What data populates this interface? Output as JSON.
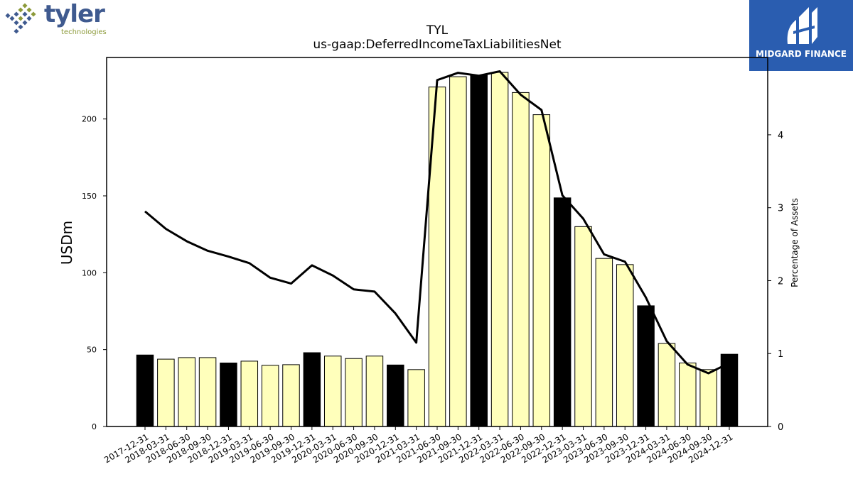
{
  "logos": {
    "tyler": {
      "word": "tyler",
      "sub": "technologies",
      "dot_colors": [
        "#8c9a3a",
        "#3f5a8f"
      ]
    },
    "midgard": {
      "name": "MIDGARD FINANCE",
      "bg": "#2a5db0"
    }
  },
  "chart_data": {
    "type": "bar",
    "title": "TYL",
    "subtitle": "us-gaap:DeferredIncomeTaxLiabilitiesNet",
    "ylabel": "USDm",
    "y2label": "Percentage of Assets",
    "categories": [
      "2017-12-31",
      "2018-03-31",
      "2018-06-30",
      "2018-09-30",
      "2018-12-31",
      "2019-03-31",
      "2019-06-30",
      "2019-09-30",
      "2019-12-31",
      "2020-03-31",
      "2020-06-30",
      "2020-09-30",
      "2020-12-31",
      "2021-03-31",
      "2021-06-30",
      "2021-09-30",
      "2021-12-31",
      "2022-03-31",
      "2022-06-30",
      "2022-09-30",
      "2022-12-31",
      "2023-03-31",
      "2023-06-30",
      "2023-09-30",
      "2023-12-31",
      "2024-03-31",
      "2024-06-30",
      "2024-09-30",
      "2024-12-31"
    ],
    "series": [
      {
        "values": [
          46.5,
          43.8,
          44.8,
          44.8,
          41.3,
          42.5,
          39.8,
          40.2,
          48.0,
          45.8,
          44.2,
          45.8,
          40.0,
          37.0,
          220.8,
          227.5,
          228.5,
          230.3,
          217.2,
          202.8,
          148.7,
          130.0,
          109.3,
          105.3,
          78.5,
          54.0,
          41.3,
          37.0,
          47.0
        ]
      },
      {
        "values": [
          2.95,
          2.71,
          2.54,
          2.41,
          2.33,
          2.24,
          2.04,
          1.96,
          2.21,
          2.07,
          1.88,
          1.85,
          1.55,
          1.15,
          4.75,
          4.85,
          4.81,
          4.87,
          4.55,
          4.34,
          3.17,
          2.85,
          2.36,
          2.26,
          1.77,
          1.17,
          0.85,
          0.73,
          0.87
        ]
      }
    ],
    "annual_color": "#000000",
    "quarter_color": "#ffffbb",
    "ylim": [
      0,
      240
    ],
    "y2lim": [
      0,
      5.06
    ],
    "yticks": [
      0,
      50,
      100,
      150,
      200
    ],
    "y2ticks": [
      0,
      1,
      2,
      3,
      4
    ]
  }
}
